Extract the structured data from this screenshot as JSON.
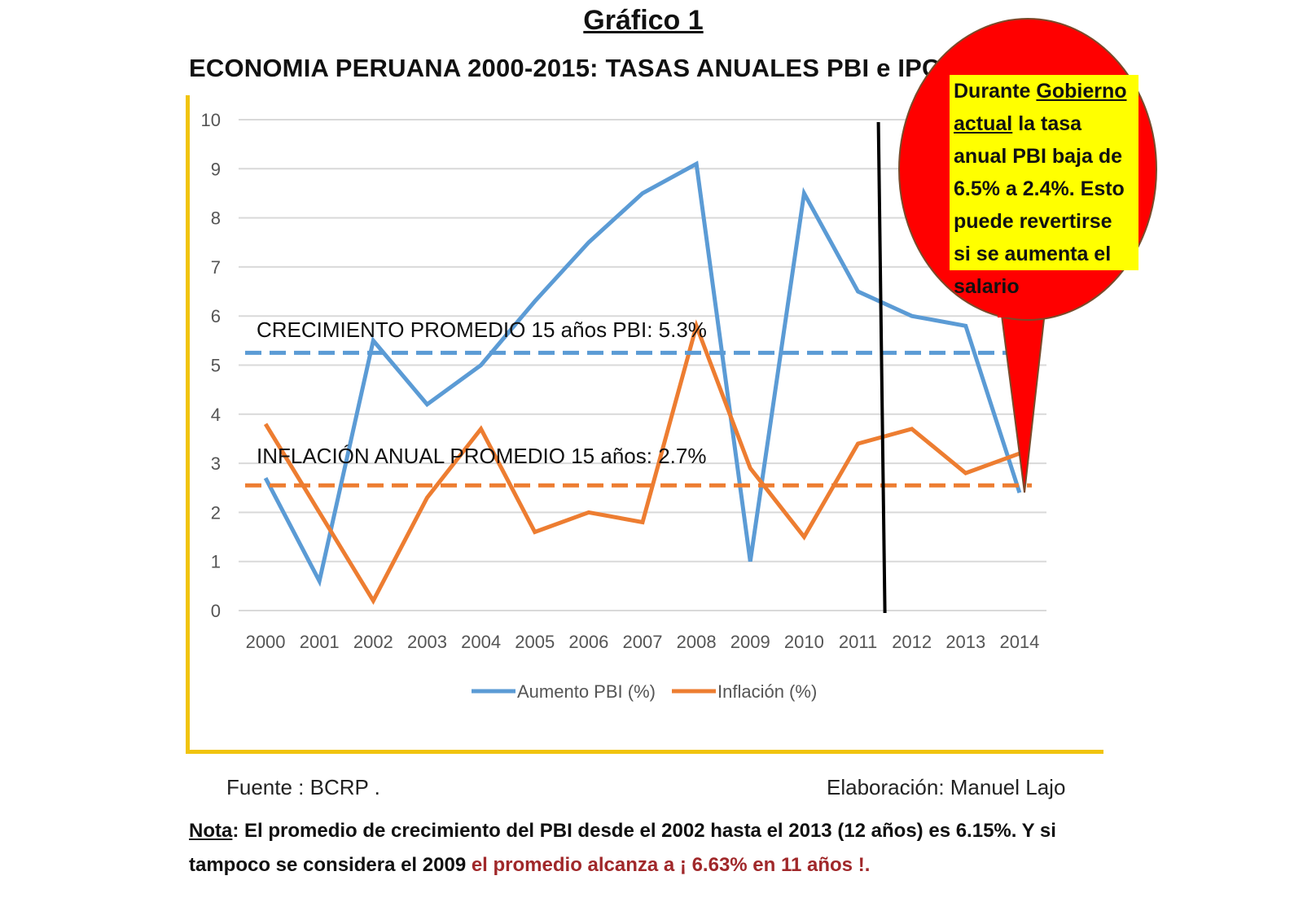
{
  "header": {
    "figure_label": "Gráfico 1",
    "title": "ECONOMIA PERUANA 2000-2015: TASAS ANUALES PBI e IPC"
  },
  "chart_data": {
    "type": "line",
    "categories": [
      "2000",
      "2001",
      "2002",
      "2003",
      "2004",
      "2005",
      "2006",
      "2007",
      "2008",
      "2009",
      "2010",
      "2011",
      "2012",
      "2013",
      "2014"
    ],
    "series": [
      {
        "name": "Aumento PBI (%)",
        "color": "#5b9bd5",
        "values": [
          2.7,
          0.6,
          5.5,
          4.2,
          5.0,
          6.3,
          7.5,
          8.5,
          9.1,
          1.0,
          8.5,
          6.5,
          6.0,
          5.8,
          2.4
        ]
      },
      {
        "name": "Inflación (%)",
        "color": "#ed7d31",
        "values": [
          3.8,
          2.0,
          0.2,
          2.3,
          3.7,
          1.6,
          2.0,
          1.8,
          5.8,
          2.9,
          1.5,
          3.4,
          3.7,
          2.8,
          3.2
        ]
      }
    ],
    "yticks": [
      "0",
      "1",
      "2",
      "3",
      "4",
      "5",
      "6",
      "7",
      "8",
      "9",
      "10"
    ],
    "ylim": [
      0,
      10
    ],
    "grid": true,
    "legend_position": "bottom",
    "reference_lines": [
      {
        "label": "CRECIMIENTO PROMEDIO 15 años PBI: 5.3%",
        "value": 5.25,
        "color": "#5b9bd5",
        "style": "dashed"
      },
      {
        "label": "INFLACIÓN  ANUAL PROMEDIO 15 años: 2.7%",
        "value": 2.55,
        "color": "#ed7d31",
        "style": "dashed"
      }
    ],
    "vertical_marker": {
      "between": [
        "2011",
        "2012"
      ],
      "color": "#000000"
    }
  },
  "callout": {
    "fill_color": "#ff0000",
    "box_color": "#ffff00",
    "text_part1": "Durante ",
    "text_underlined": "Gobierno actual",
    "text_part2": " la tasa anual PBI baja de 6.5% a 2.4%. Esto  puede revertirse  si  se aumenta el  salario"
  },
  "footer": {
    "source": "Fuente : BCRP .",
    "author": "Elaboración: Manuel Lajo",
    "note_label": "Nota",
    "note_text": ": El promedio de crecimiento del PBI desde el 2002 hasta el 2013 (12 años) es 6.15%. Y si tampoco se considera el 2009 ",
    "note_highlight": "el promedio alcanza a ¡ 6.63% en  11 años !."
  }
}
